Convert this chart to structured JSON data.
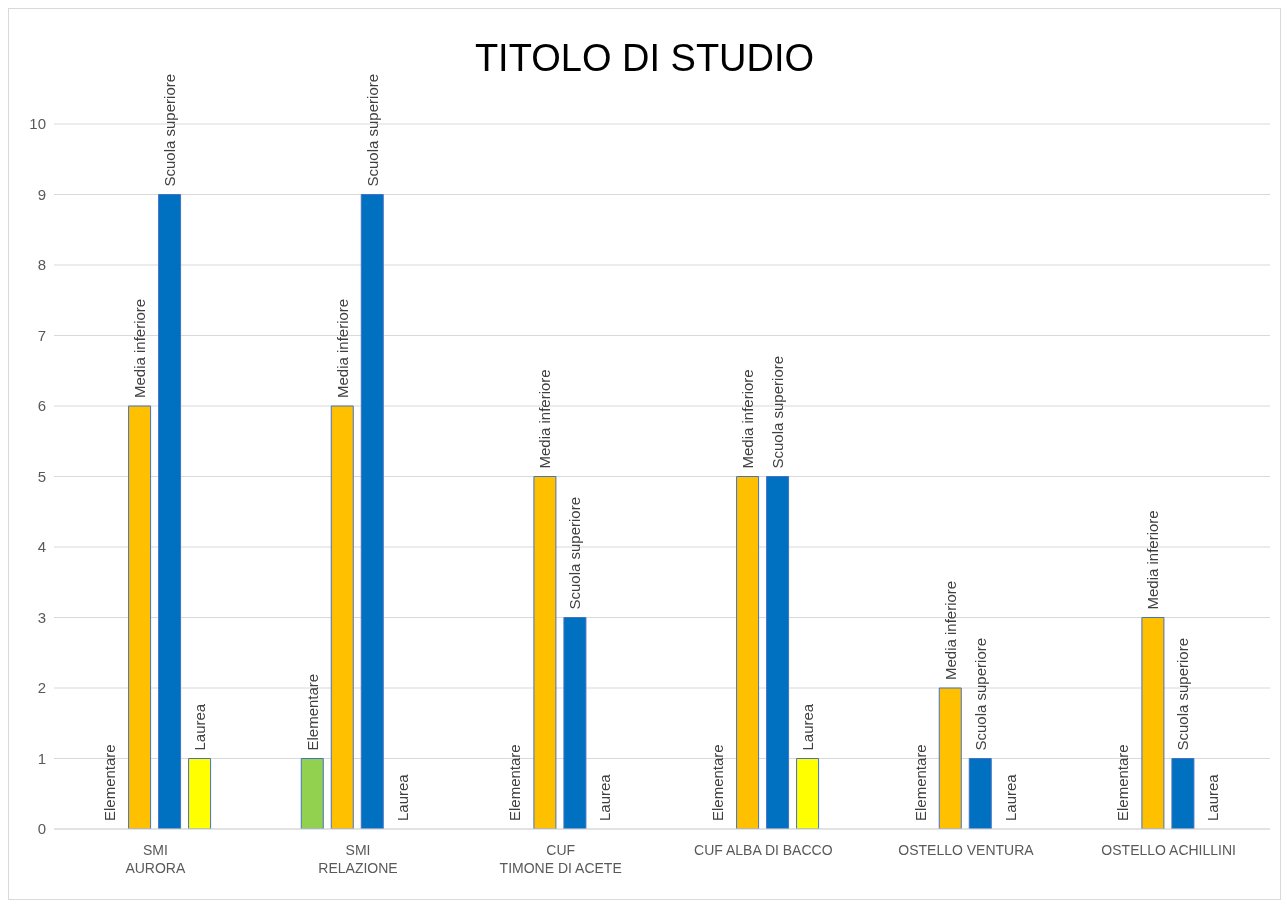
{
  "chart_data": {
    "type": "bar",
    "title": "TITOLO DI STUDIO",
    "categories": [
      "SMI\nAURORA",
      "SMI\nRELAZIONE",
      "CUF\nTIMONE DI ACETE",
      "CUF ALBA DI BACCO",
      "OSTELLO VENTURA",
      "OSTELLO ACHILLINI"
    ],
    "series": [
      {
        "name": "Elementare",
        "color": "#92d050",
        "values": [
          0,
          1,
          0,
          0,
          0,
          0
        ]
      },
      {
        "name": "Media inferiore",
        "color": "#ffc000",
        "values": [
          6,
          6,
          5,
          5,
          2,
          3
        ]
      },
      {
        "name": "Scuola superiore",
        "color": "#0070c0",
        "values": [
          9,
          9,
          3,
          5,
          1,
          1
        ]
      },
      {
        "name": "Laurea",
        "color": "#ffff00",
        "values": [
          1,
          0,
          0,
          1,
          0,
          0
        ]
      }
    ],
    "ylim": [
      0,
      10
    ],
    "yticks": [
      0,
      1,
      2,
      3,
      4,
      5,
      6,
      7,
      8,
      9,
      10
    ],
    "grid": "y",
    "legend": false
  }
}
